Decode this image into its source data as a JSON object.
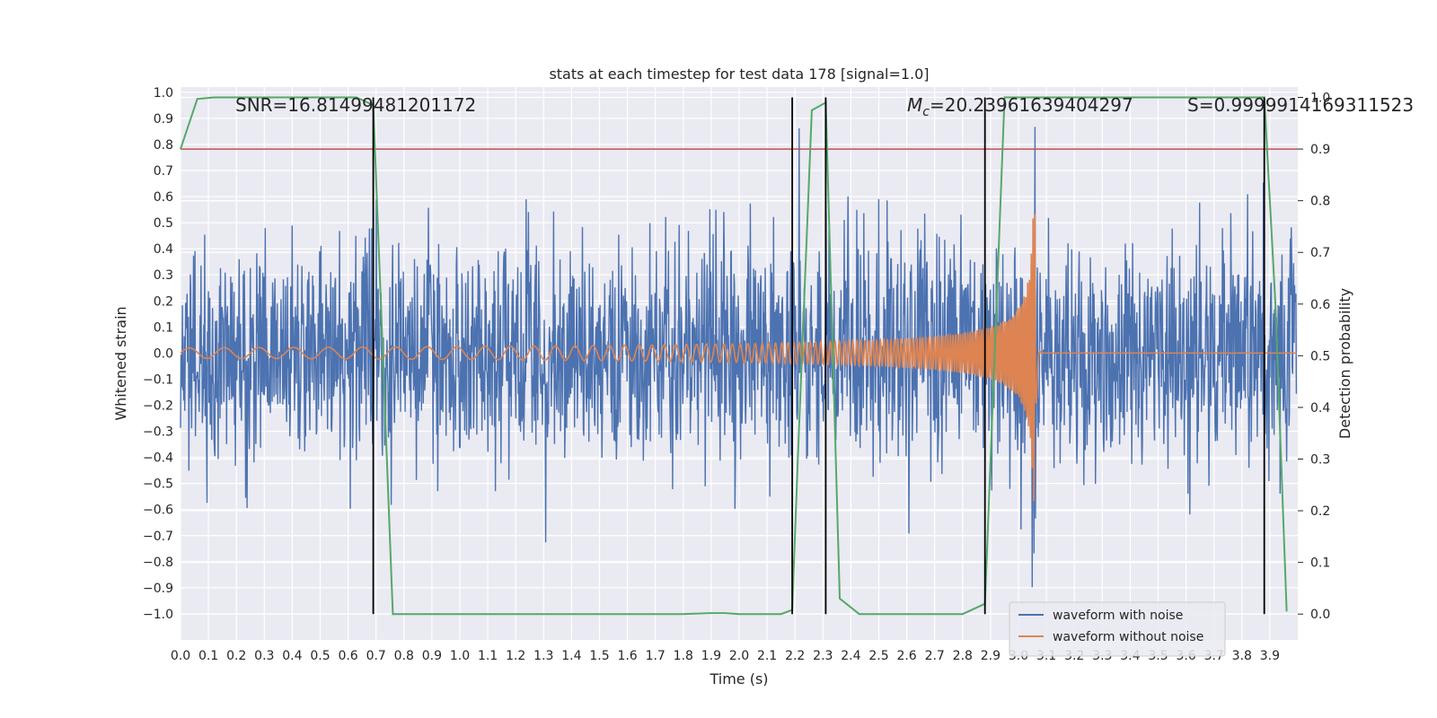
{
  "chart_data": {
    "type": "line",
    "title": "stats at each timestep for test data 178 [signal=1.0]",
    "xlabel": "Time (s)",
    "ylabel": "Whitened strain",
    "ylabel_right": "Detection probability",
    "xlim": [
      0.0,
      4.0
    ],
    "ylim": [
      -1.1,
      1.02
    ],
    "ylim_right": [
      -0.05,
      1.02
    ],
    "x_ticks": [
      "0.0",
      "0.1",
      "0.2",
      "0.3",
      "0.4",
      "0.5",
      "0.6",
      "0.7",
      "0.8",
      "0.9",
      "1.0",
      "1.1",
      "1.2",
      "1.3",
      "1.4",
      "1.5",
      "1.6",
      "1.7",
      "1.8",
      "1.9",
      "2.0",
      "2.1",
      "2.2",
      "2.3",
      "2.4",
      "2.5",
      "2.6",
      "2.7",
      "2.8",
      "2.9",
      "3.0",
      "3.1",
      "3.2",
      "3.3",
      "3.4",
      "3.5",
      "3.6",
      "3.7",
      "3.8",
      "3.9"
    ],
    "y_ticks": [
      "1.0",
      "0.9",
      "0.8",
      "0.7",
      "0.6",
      "0.5",
      "0.4",
      "0.3",
      "0.2",
      "0.1",
      "0.0",
      "−0.1",
      "−0.2",
      "−0.3",
      "−0.4",
      "−0.5",
      "−0.6",
      "−0.7",
      "−0.8",
      "−0.9",
      "−1.0"
    ],
    "y_tick_values": [
      1.0,
      0.9,
      0.8,
      0.7,
      0.6,
      0.5,
      0.4,
      0.3,
      0.2,
      0.1,
      0.0,
      -0.1,
      -0.2,
      -0.3,
      -0.4,
      -0.5,
      -0.6,
      -0.7,
      -0.8,
      -0.9,
      -1.0
    ],
    "y2_ticks": [
      "1.0",
      "0.9",
      "0.8",
      "0.7",
      "0.6",
      "0.5",
      "0.4",
      "0.3",
      "0.2",
      "0.1",
      "0.0"
    ],
    "y2_tick_values": [
      1.0,
      0.9,
      0.8,
      0.7,
      0.6,
      0.5,
      0.4,
      0.3,
      0.2,
      0.1,
      0.0
    ],
    "annotations": {
      "snr": "SNR=16.81499481201172",
      "mc_symbol": "M",
      "mc_sub": "c",
      "mc_value": "=20.23961639404297",
      "s": "S=0.9999914169311523"
    },
    "legend": {
      "position": "lower-right",
      "entries": [
        "waveform with noise",
        "waveform without noise"
      ]
    },
    "threshold": {
      "axis": "right",
      "value": 0.9,
      "color": "#c44e52"
    },
    "vertical_markers": [
      0.69,
      2.19,
      2.31,
      2.88,
      3.88
    ],
    "detection_probability": {
      "x": [
        0.0,
        0.06,
        0.12,
        0.2,
        0.3,
        0.4,
        0.5,
        0.6,
        0.63,
        0.69,
        0.76,
        0.9,
        1.0,
        1.2,
        1.4,
        1.6,
        1.8,
        1.9,
        1.95,
        2.0,
        2.1,
        2.15,
        2.19,
        2.21,
        2.26,
        2.31,
        2.36,
        2.43,
        2.5,
        2.6,
        2.7,
        2.8,
        2.88,
        2.95,
        3.0,
        3.1,
        3.2,
        3.4,
        3.6,
        3.8,
        3.88,
        3.92,
        3.96
      ],
      "y": [
        0.9,
        0.997,
        1.0,
        1.0,
        1.0,
        1.0,
        1.0,
        1.0,
        1.0,
        0.985,
        0.0,
        0.0,
        0.0,
        0.0,
        0.0,
        0.0,
        0.0,
        0.002,
        0.002,
        0.0,
        0.0,
        0.0,
        0.008,
        0.3,
        0.975,
        0.99,
        0.03,
        0.0,
        0.0,
        0.0,
        0.0,
        0.0,
        0.02,
        1.0,
        1.0,
        1.0,
        1.0,
        1.0,
        1.0,
        1.0,
        1.0,
        0.6,
        0.005
      ]
    },
    "waveform_without_noise": {
      "amplitude_start": 0.02,
      "amplitude_peak": 0.6,
      "freq_start": 8,
      "freq_end": 160,
      "merger_time": 3.06,
      "ringdown_end": 3.08
    },
    "waveform_with_noise": {
      "noise_sigma": 0.21,
      "samples": 2400
    },
    "colors": {
      "noisy": "#4c72b0",
      "clean": "#dd8452",
      "probability": "#55a868",
      "threshold": "#c44e52",
      "markers": "#000000",
      "axes_bg": "#eaeaf2"
    }
  }
}
